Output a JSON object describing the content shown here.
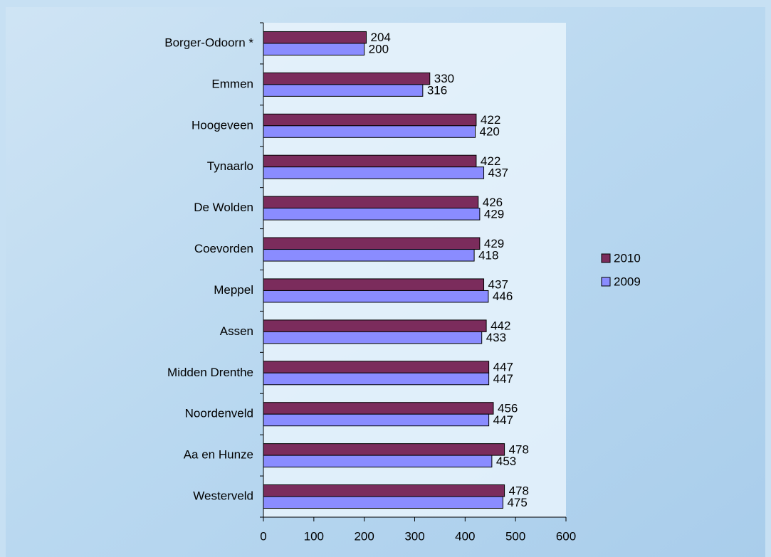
{
  "chart_data": {
    "type": "hbar",
    "categories": [
      "Borger-Odoorn *",
      "Emmen",
      "Hoogeveen",
      "Tynaarlo",
      "De Wolden",
      "Coevorden",
      "Meppel",
      "Assen",
      "Midden Drenthe",
      "Noordenveld",
      "Aa en Hunze",
      "Westerveld"
    ],
    "series": [
      {
        "name": "2010",
        "color": "#7b2c5c",
        "values": [
          204,
          330,
          422,
          422,
          426,
          429,
          437,
          442,
          447,
          456,
          478,
          478
        ]
      },
      {
        "name": "2009",
        "color": "#8a8cff",
        "values": [
          200,
          316,
          420,
          437,
          429,
          418,
          446,
          433,
          447,
          447,
          453,
          475
        ]
      }
    ],
    "xlim": [
      0,
      600
    ],
    "xticks": [
      0,
      100,
      200,
      300,
      400,
      500,
      600
    ],
    "legend": "right"
  }
}
